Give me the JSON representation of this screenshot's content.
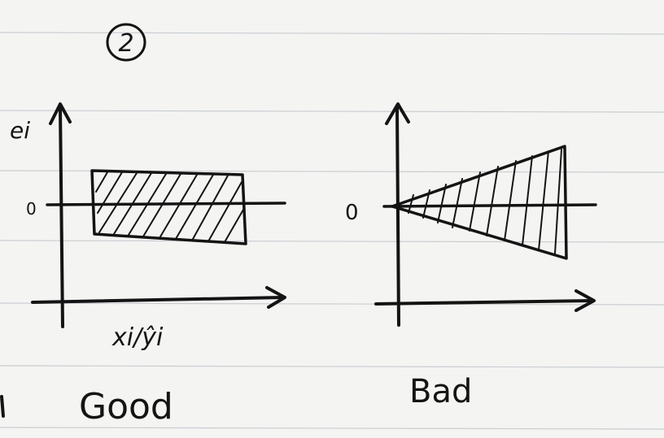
{
  "note": {
    "step_number": "2",
    "left_plot": {
      "y_axis_label": "ei",
      "x_axis_label": "xi/ŷi",
      "zero_label": "0",
      "caption": "Good"
    },
    "right_plot": {
      "zero_label": "0",
      "caption": "Bad"
    }
  },
  "colors": {
    "paper": "#f4f4f2",
    "rule_line": "#c9ced2",
    "ink": "#141414"
  }
}
